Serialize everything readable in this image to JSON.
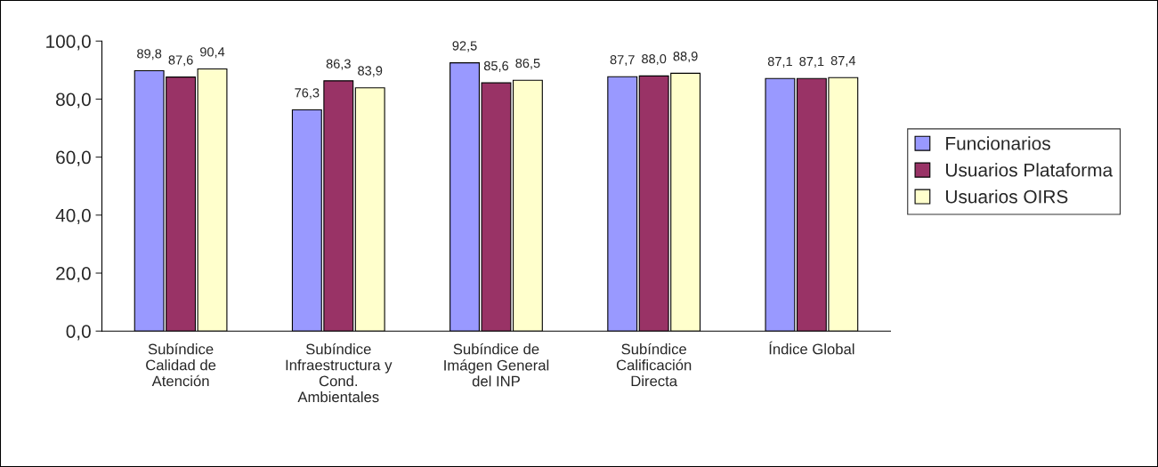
{
  "chart_data": {
    "type": "bar",
    "categories": [
      "Subíndice\nCalidad de\nAtención",
      "Subíndice\nInfraestructura y\nCond.\nAmbientales",
      "Subíndice de\nImágen General\ndel INP",
      "Subíndice\nCalificación\nDirecta",
      "Índice Global"
    ],
    "series": [
      {
        "name": "Funcionarios",
        "color": "#9999ff",
        "values": [
          89.8,
          76.3,
          92.5,
          87.7,
          87.1
        ],
        "value_labels": [
          "89,8",
          "76,3",
          "92,5",
          "87,7",
          "87,1"
        ]
      },
      {
        "name": "Usuarios Plataforma",
        "color": "#993366",
        "values": [
          87.6,
          86.3,
          85.6,
          88.0,
          87.1
        ],
        "value_labels": [
          "87,6",
          "86,3",
          "85,6",
          "88,0",
          "87,1"
        ]
      },
      {
        "name": "Usuarios OIRS",
        "color": "#ffffcc",
        "values": [
          90.4,
          83.9,
          86.5,
          88.9,
          87.4
        ],
        "value_labels": [
          "90,4",
          "83,9",
          "86,5",
          "88,9",
          "87,4"
        ]
      }
    ],
    "ylim": [
      0,
      100
    ],
    "yticks": [
      {
        "value": 0,
        "label": "0,0"
      },
      {
        "value": 20,
        "label": "20,0"
      },
      {
        "value": 40,
        "label": "40,0"
      },
      {
        "value": 60,
        "label": "60,0"
      },
      {
        "value": 80,
        "label": "80,0"
      },
      {
        "value": 100,
        "label": "100,0"
      }
    ],
    "grid": false,
    "legend": "right"
  }
}
